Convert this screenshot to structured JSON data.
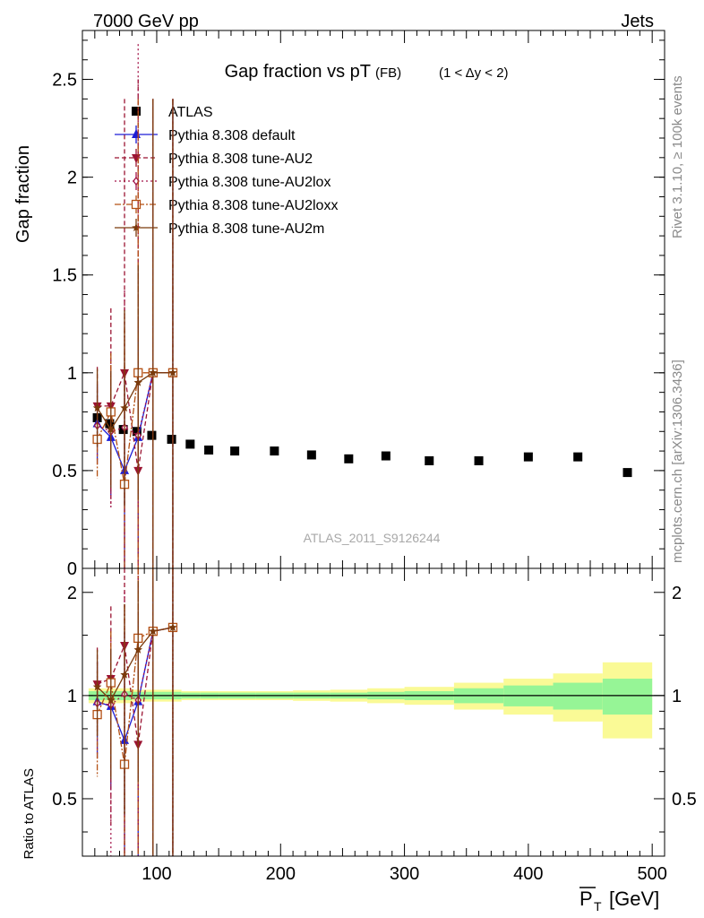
{
  "header": {
    "left": "7000 GeV pp",
    "right": "Jets"
  },
  "side_labels": {
    "rivet": "Rivet 3.1.10, ≥ 100k events",
    "mcplots": "mcplots.cern.ch [arXiv:1306.3436]"
  },
  "watermark": "ATLAS_2011_S9126244",
  "chart_data": [
    {
      "type": "scatter",
      "panel": "main",
      "title": "Gap fraction vs pT",
      "title_suffix": "(FB)",
      "title_range": "(1 < Δy < 2)",
      "ylabel": "Gap fraction",
      "xlim": [
        40,
        510
      ],
      "ylim": [
        0,
        2.75
      ],
      "x_ticks": [
        100,
        200,
        300,
        400,
        500
      ],
      "y_ticks": [
        0,
        0.5,
        1,
        1.5,
        2,
        2.5
      ],
      "y_tick_labels": [
        "0",
        "0.5",
        "1",
        "1.5",
        "2",
        "2.5"
      ],
      "legend_position": "top-left",
      "series": [
        {
          "name": "ATLAS",
          "marker": "square",
          "color": "#000000",
          "dash": "none",
          "x": [
            52,
            62,
            73,
            84,
            96,
            112,
            127,
            142,
            163,
            195,
            225,
            255,
            285,
            320,
            360,
            400,
            440,
            480
          ],
          "y": [
            0.77,
            0.74,
            0.71,
            0.7,
            0.68,
            0.66,
            0.635,
            0.605,
            0.6,
            0.6,
            0.58,
            0.56,
            0.575,
            0.55,
            0.55,
            0.57,
            0.57,
            0.49
          ],
          "err": [
            0.02,
            0.02,
            0.02,
            0.02,
            0.02,
            0.02,
            0.01,
            0.01,
            0.01,
            0.01,
            0.01,
            0.01,
            0.01,
            0.01,
            0.01,
            0.01,
            0.01,
            0.01
          ]
        },
        {
          "name": "Pythia 8.308 default",
          "marker": "triangle-up",
          "color": "#1d1dd6",
          "dash": "none",
          "x": [
            52,
            63,
            74,
            85,
            97,
            113
          ],
          "y": [
            0.74,
            0.67,
            0.5,
            0.67,
            1.0,
            1.0
          ],
          "err": [
            0.2,
            0.3,
            0.5,
            0.6,
            1.4,
            1.4
          ]
        },
        {
          "name": "Pythia 8.308 tune-AU2",
          "marker": "triangle-down",
          "color": "#9b1432",
          "dash": "5,3",
          "x": [
            52,
            63,
            74,
            85,
            97,
            113
          ],
          "y": [
            0.83,
            0.83,
            1.0,
            0.5,
            1.0,
            1.0
          ],
          "err": [
            0.2,
            0.5,
            1.4,
            2.0,
            1.4,
            1.4
          ]
        },
        {
          "name": "Pythia 8.308 tune-AU2lox",
          "marker": "diamond",
          "color": "#a3154a",
          "dash": "2,3",
          "x": [
            52,
            63,
            74,
            85,
            97,
            113
          ],
          "y": [
            0.73,
            0.7,
            0.72,
            0.68,
            1.0,
            1.0
          ],
          "err": [
            0.2,
            0.4,
            0.7,
            2.0,
            1.4,
            1.4
          ]
        },
        {
          "name": "Pythia 8.308 tune-AU2loxx",
          "marker": "square-open",
          "color": "#b45014",
          "dash": "7,2,2,2",
          "x": [
            52,
            63,
            74,
            85,
            97,
            113
          ],
          "y": [
            0.66,
            0.8,
            0.43,
            1.0,
            1.0,
            1.0
          ],
          "err": [
            0.2,
            0.3,
            0.8,
            1.4,
            1.4,
            1.4
          ]
        },
        {
          "name": "Pythia 8.308 tune-AU2m",
          "marker": "star",
          "color": "#7a3a0c",
          "dash": "none",
          "x": [
            52,
            63,
            74,
            85,
            97,
            113
          ],
          "y": [
            0.82,
            0.71,
            0.82,
            0.95,
            1.0,
            1.0
          ],
          "err": [
            0.2,
            0.3,
            0.5,
            0.6,
            1.4,
            1.4
          ]
        }
      ]
    },
    {
      "type": "line",
      "panel": "ratio",
      "ylabel": "Ratio to ATLAS",
      "xlabel": "P̅T [GeV]",
      "xlabel_main": "P",
      "xlabel_sub": "T",
      "xlabel_unit": "[GeV]",
      "xlim": [
        40,
        510
      ],
      "ylim": [
        0.34,
        2.35
      ],
      "log_y": true,
      "x_ticks": [
        100,
        200,
        300,
        400,
        500
      ],
      "x_tick_labels": [
        "100",
        "200",
        "300",
        "400",
        "500"
      ],
      "y_ticks": [
        0.5,
        1,
        2
      ],
      "y_tick_labels": [
        "0.5",
        "1",
        "2"
      ],
      "bands": {
        "edges": [
          45,
          58,
          68,
          80,
          90,
          104,
          120,
          135,
          150,
          180,
          210,
          240,
          270,
          300,
          340,
          380,
          420,
          460,
          500
        ],
        "inner": [
          0.03,
          0.03,
          0.03,
          0.025,
          0.025,
          0.025,
          0.02,
          0.02,
          0.02,
          0.02,
          0.02,
          0.02,
          0.025,
          0.03,
          0.05,
          0.07,
          0.09,
          0.12
        ],
        "outer": [
          0.05,
          0.05,
          0.05,
          0.04,
          0.04,
          0.04,
          0.03,
          0.03,
          0.03,
          0.03,
          0.035,
          0.04,
          0.05,
          0.06,
          0.09,
          0.12,
          0.16,
          0.25
        ],
        "inner_color": "#96f596",
        "outer_color": "#fafa96"
      },
      "series": [
        {
          "name": "Pythia 8.308 default",
          "marker": "triangle-up",
          "color": "#1d1dd6",
          "dash": "none",
          "x": [
            52,
            63,
            74,
            85,
            97,
            113
          ],
          "y": [
            0.96,
            0.93,
            0.74,
            0.96,
            1.54,
            1.58
          ],
          "err": [
            0.3,
            0.4,
            0.8,
            0.8,
            2.5,
            2.5
          ]
        },
        {
          "name": "Pythia 8.308 tune-AU2",
          "marker": "triangle-down",
          "color": "#9b1432",
          "dash": "5,3",
          "x": [
            52,
            63,
            74,
            85,
            97,
            113
          ],
          "y": [
            1.08,
            1.12,
            1.4,
            0.72,
            1.54,
            1.58
          ],
          "err": [
            0.3,
            0.7,
            1.5,
            2.5,
            2.5,
            2.5
          ]
        },
        {
          "name": "Pythia 8.308 tune-AU2lox",
          "marker": "diamond",
          "color": "#a3154a",
          "dash": "2,3",
          "x": [
            52,
            63,
            74,
            85,
            97,
            113
          ],
          "y": [
            0.95,
            0.94,
            1.01,
            0.97,
            1.54,
            1.58
          ],
          "err": [
            0.3,
            0.6,
            1.0,
            2.5,
            2.5,
            2.5
          ]
        },
        {
          "name": "Pythia 8.308 tune-AU2loxx",
          "marker": "square-open",
          "color": "#b45014",
          "dash": "7,2,2,2",
          "x": [
            52,
            63,
            74,
            85,
            97,
            113
          ],
          "y": [
            0.88,
            1.09,
            0.63,
            1.47,
            1.54,
            1.58
          ],
          "err": [
            0.3,
            0.45,
            1.2,
            2.0,
            2.5,
            2.5
          ]
        },
        {
          "name": "Pythia 8.308 tune-AU2m",
          "marker": "star",
          "color": "#7a3a0c",
          "dash": "none",
          "x": [
            52,
            63,
            74,
            85,
            97,
            113
          ],
          "y": [
            1.06,
            0.97,
            1.15,
            1.36,
            1.54,
            1.58
          ],
          "err": [
            0.3,
            0.4,
            0.7,
            0.8,
            2.5,
            2.5
          ]
        }
      ]
    }
  ]
}
